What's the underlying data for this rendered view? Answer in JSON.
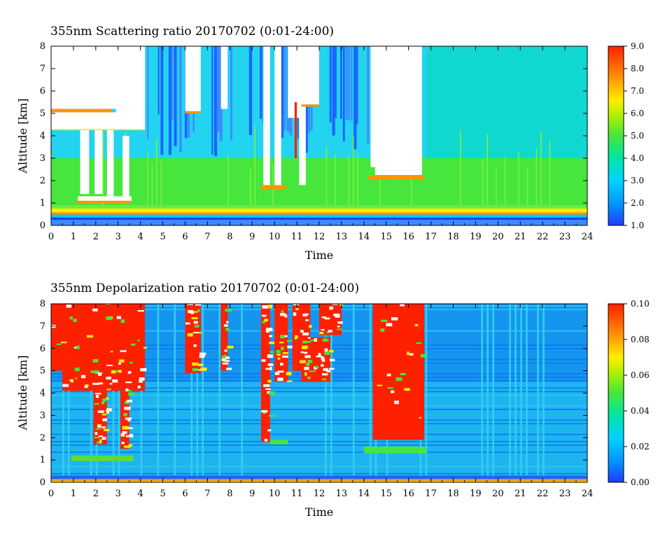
{
  "chart_data": [
    {
      "type": "heatmap",
      "title": "355nm Scattering ratio  20170702 (0:01-24:00)",
      "xlabel": "Time",
      "ylabel": "Altitude [km]",
      "xlim": [
        0,
        24
      ],
      "ylim": [
        0,
        8
      ],
      "x_ticks": [
        "0",
        "1",
        "2",
        "3",
        "4",
        "5",
        "6",
        "7",
        "8",
        "9",
        "10",
        "11",
        "12",
        "13",
        "14",
        "15",
        "16",
        "17",
        "18",
        "19",
        "20",
        "21",
        "22",
        "23",
        "24"
      ],
      "y_ticks": [
        "0",
        "1",
        "2",
        "3",
        "4",
        "5",
        "6",
        "7",
        "8"
      ],
      "colorbar": {
        "range": [
          1.0,
          9.0
        ],
        "ticks": [
          "1.0",
          "2.0",
          "3.0",
          "4.0",
          "5.0",
          "6.0",
          "7.0",
          "8.0",
          "9.0"
        ]
      },
      "colors": {
        "low": "#1e3cff",
        "mid_low": "#00d2ff",
        "mid": "#46e63c",
        "mid_high": "#ffee00",
        "high": "#ff2000",
        "missing": "#ffffff"
      }
    },
    {
      "type": "heatmap",
      "title": "355nm Depolarization ratio  20170702 (0:01-24:00)",
      "xlabel": "Time",
      "ylabel": "Altitude [km]",
      "xlim": [
        0,
        24
      ],
      "ylim": [
        0,
        8
      ],
      "x_ticks": [
        "0",
        "1",
        "2",
        "3",
        "4",
        "5",
        "6",
        "7",
        "8",
        "9",
        "10",
        "11",
        "12",
        "13",
        "14",
        "15",
        "16",
        "17",
        "18",
        "19",
        "20",
        "21",
        "22",
        "23",
        "24"
      ],
      "y_ticks": [
        "0",
        "1",
        "2",
        "3",
        "4",
        "5",
        "6",
        "7",
        "8"
      ],
      "colorbar": {
        "range": [
          0.0,
          0.1
        ],
        "ticks": [
          "0.00",
          "0.02",
          "0.04",
          "0.06",
          "0.08",
          "0.10"
        ]
      },
      "colors": {
        "low": "#1e3cff",
        "mid_low": "#00d2ff",
        "mid": "#46e63c",
        "mid_high": "#ffee00",
        "high": "#ff2000",
        "missing": "#ffffff"
      }
    }
  ]
}
